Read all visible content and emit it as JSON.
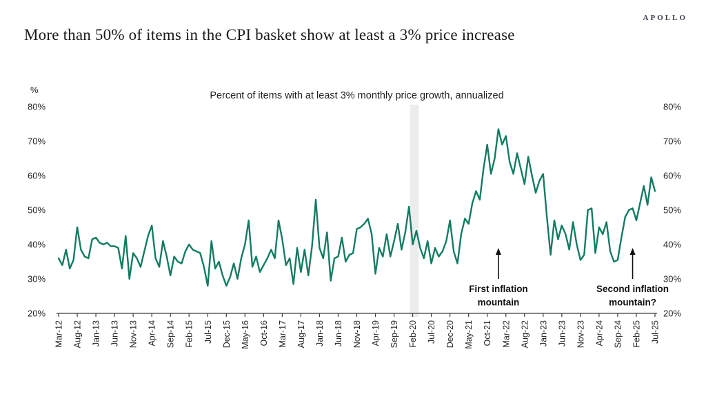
{
  "brand": {
    "logo_text": "APOLLO"
  },
  "title": "More than 50% of items in the CPI basket show at least a 3% price increase",
  "chart_data": {
    "type": "line",
    "title": "Percent of items with at least 3% monthly price growth, annualized",
    "ylabel": "%",
    "ylim": [
      20,
      80
    ],
    "grid": false,
    "legend": "none",
    "frequency": "monthly",
    "x_start": "Mar-12",
    "x_end": "Jul-25",
    "x_tick_every_n_months": 5,
    "x_tick_labels": [
      "Mar-12",
      "Aug-12",
      "Jan-13",
      "Jun-13",
      "Nov-13",
      "Apr-14",
      "Sep-14",
      "Feb-15",
      "Jul-15",
      "Dec-15",
      "May-16",
      "Oct-16",
      "Mar-17",
      "Aug-17",
      "Jan-18",
      "Jun-18",
      "Nov-18",
      "Apr-19",
      "Sep-19",
      "Feb-20",
      "Jul-20",
      "Dec-20",
      "May-21",
      "Oct-21",
      "Mar-22",
      "Aug-22",
      "Jan-23",
      "Jun-23",
      "Nov-23",
      "Apr-24",
      "Sep-24",
      "Feb-25",
      "Jul-25"
    ],
    "y_ticks": [
      "80%",
      "70%",
      "60%",
      "50%",
      "40%",
      "30%",
      "20%"
    ],
    "series": [
      {
        "name": "Percent of items with at least 3% monthly price growth, annualized",
        "color": "#127C61",
        "values": [
          36,
          34,
          38.5,
          33,
          35.5,
          45,
          38.5,
          36.5,
          36,
          41.5,
          42,
          40.5,
          40,
          40.5,
          39.5,
          39.5,
          39,
          33,
          42.5,
          30,
          37.5,
          36,
          33.5,
          38,
          42.5,
          45.5,
          36,
          33.5,
          41,
          36.5,
          31,
          36.5,
          35,
          34.5,
          38,
          40,
          38.5,
          38,
          37.5,
          33.5,
          28,
          41,
          33,
          35,
          31,
          28,
          30.5,
          34.5,
          30,
          36,
          40,
          47,
          33.5,
          36.5,
          32,
          34,
          36,
          38.5,
          36,
          47,
          41.5,
          34,
          36,
          28.5,
          39,
          32,
          38.5,
          31,
          39.5,
          53,
          39,
          36,
          43.5,
          29.5,
          36,
          36.5,
          42,
          35,
          37,
          37.5,
          44.5,
          45,
          46,
          47.5,
          43,
          31.5,
          39,
          36.5,
          43,
          36.5,
          41,
          46,
          38.5,
          43.5,
          51,
          40,
          44,
          39,
          36,
          41,
          34.5,
          39,
          36.5,
          38,
          41,
          47,
          38,
          34.5,
          43,
          47.5,
          46,
          52,
          55.5,
          53,
          62,
          69,
          60.5,
          65,
          73.5,
          69,
          71.5,
          64,
          60.5,
          66.5,
          62,
          57.5,
          65.5,
          60,
          55,
          58.5,
          60.5,
          48,
          37,
          47,
          41.5,
          45.5,
          43,
          38.5,
          46.5,
          40,
          35.5,
          37,
          50,
          50.5,
          37.5,
          45,
          43,
          46.5,
          38,
          35,
          35.5,
          42,
          48,
          50,
          50.5,
          47,
          52,
          57,
          51.5,
          59.5,
          55.5
        ]
      }
    ],
    "recession_band": {
      "from": "Feb-20",
      "to": "Apr-20",
      "color": "#ECECEC"
    },
    "annotations": [
      {
        "month": "Jan-22",
        "text_lines": [
          "First inflation",
          "mountain"
        ]
      },
      {
        "month": "Jan-25",
        "text_lines": [
          "Second inflation",
          "mountain?"
        ]
      }
    ],
    "axis_color": "#3c3c3c",
    "label_color": "#262626",
    "annotation_color": "#111111"
  }
}
